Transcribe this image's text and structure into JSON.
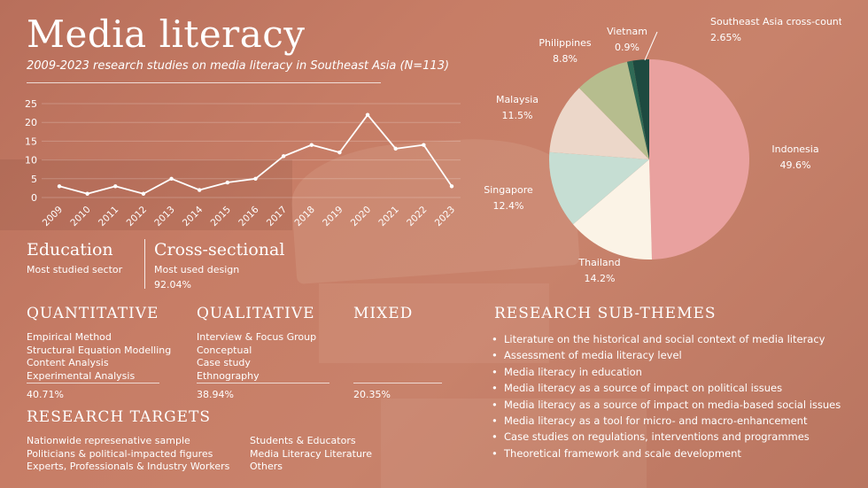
{
  "title": "Media literacy",
  "subtitle": "2009-2023 research studies on media literacy in Southeast Asia (N=113)",
  "chart_data": [
    {
      "type": "line",
      "x": [
        "2009",
        "2010",
        "2011",
        "2012",
        "2013",
        "2014",
        "2015",
        "2016",
        "2017",
        "2018",
        "2019",
        "2020",
        "2021",
        "2022",
        "2023"
      ],
      "series": [
        {
          "values": [
            3,
            1,
            3,
            1,
            5,
            2,
            4,
            5,
            11,
            14,
            12,
            22,
            13,
            14,
            3
          ]
        }
      ],
      "y_ticks": [
        0,
        5,
        10,
        15,
        20,
        25
      ],
      "ylim": [
        0,
        25
      ],
      "grid": true,
      "color": "#ffffff"
    },
    {
      "type": "pie",
      "slices": [
        {
          "label": "Indonesia",
          "value": 49.6,
          "value_label": "49.6%",
          "color": "#e9a19f"
        },
        {
          "label": "Thailand",
          "value": 14.2,
          "value_label": "14.2%",
          "color": "#fbf3e6"
        },
        {
          "label": "Singapore",
          "value": 12.4,
          "value_label": "12.4%",
          "color": "#c6ded3"
        },
        {
          "label": "Malaysia",
          "value": 11.5,
          "value_label": "11.5%",
          "color": "#ecd7c9"
        },
        {
          "label": "Philippines",
          "value": 8.8,
          "value_label": "8.8%",
          "color": "#b6bd8e"
        },
        {
          "label": "Vietnam",
          "value": 0.9,
          "value_label": "0.9%",
          "color": "#2f6a55"
        },
        {
          "label": "Southeast Asia cross-country",
          "value": 2.65,
          "value_label": "2.65%",
          "color": "#1d4a40"
        }
      ]
    }
  ],
  "stats": {
    "education": {
      "head": "Education",
      "sub": "Most studied sector"
    },
    "cross": {
      "head": "Cross-sectional",
      "sub": "Most used design",
      "value": "92.04%"
    }
  },
  "methods": {
    "quantitative": {
      "head": "QUANTITATIVE",
      "items": [
        "Empirical Method",
        "Structural Equation Modelling",
        "Content Analysis",
        "Experimental Analysis"
      ],
      "pct": "40.71%"
    },
    "qualitative": {
      "head": "QUALITATIVE",
      "items": [
        "Interview & Focus Group",
        "Conceptual",
        "Case study",
        "Ethnography"
      ],
      "pct": "38.94%"
    },
    "mixed": {
      "head": "MIXED",
      "pct": "20.35%"
    }
  },
  "targets": {
    "head": "RESEARCH TARGETS",
    "col1": [
      "Nationwide represenative sample",
      "Politicians & political-impacted figures",
      "Experts, Professionals & Industry Workers"
    ],
    "col2": [
      "Students & Educators",
      "Media Literacy Literature",
      "Others"
    ]
  },
  "subthemes": {
    "head": "RESEARCH SUB-THEMES",
    "items": [
      "Literature on the historical and social context of media literacy",
      "Assessment of media literacy level",
      "Media literacy in education",
      "Media literacy as a source of impact on political issues",
      "Media literacy as a source of impact on media-based social issues",
      "Media literacy as a tool for micro- and macro-enhancement",
      "Case studies on regulations, interventions and programmes",
      "Theoretical framework and scale development"
    ]
  }
}
